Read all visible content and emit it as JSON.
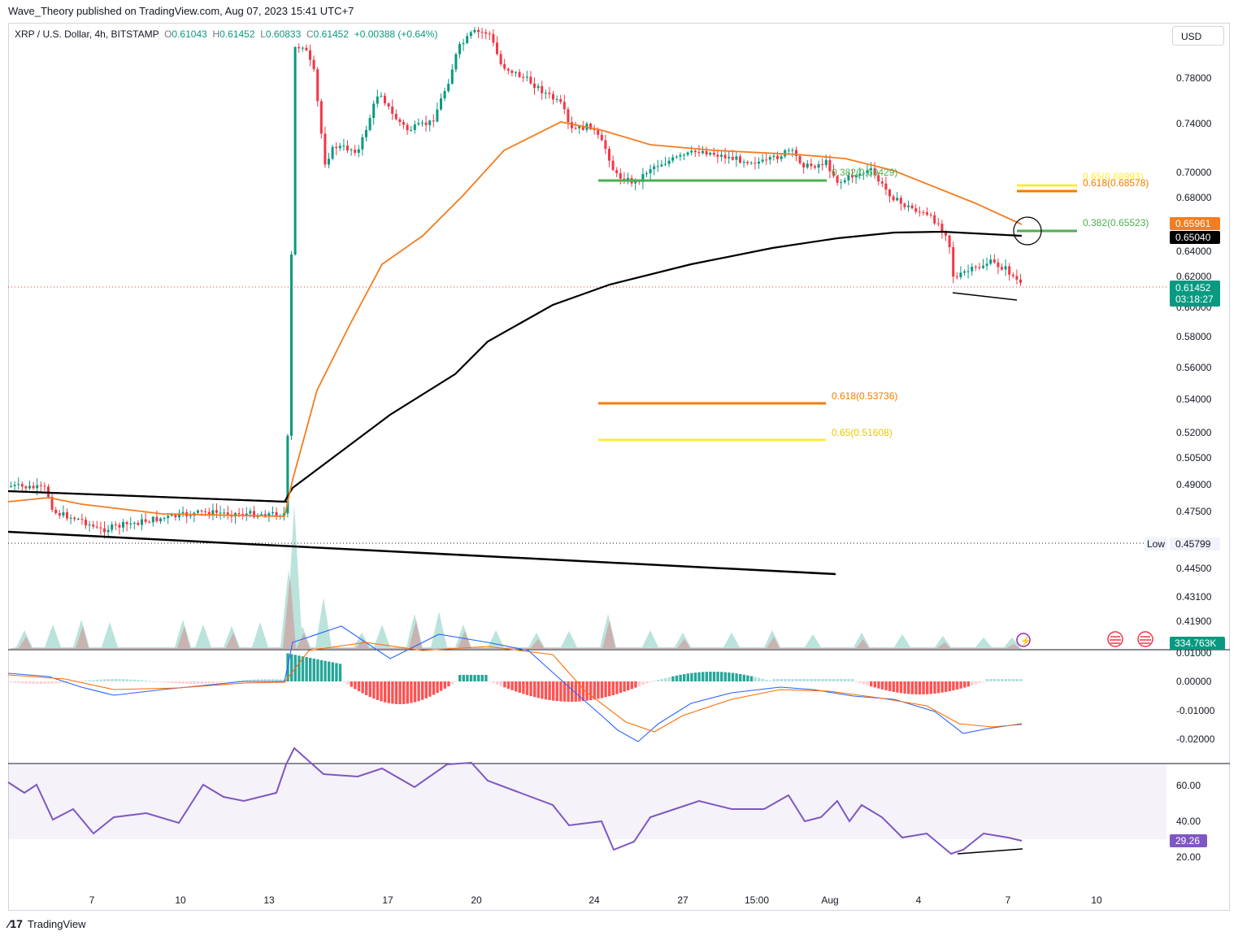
{
  "header": {
    "publisher_line": "Wave_Theory published on TradingView.com, Aug 07, 2023 15:41 UTC+7"
  },
  "legend": {
    "symbol": "XRP / U.S. Dollar, 4h, BITSTAMP",
    "o_label": "O",
    "o_value": "0.61043",
    "h_label": "H",
    "h_value": "0.61452",
    "l_label": "L",
    "l_value": "0.60833",
    "c_label": "C",
    "c_value": "0.61452",
    "change": "+0.00388 (+0.64%)"
  },
  "currency_button": "USD",
  "footer": {
    "brand": "TradingView"
  },
  "colors": {
    "up": "#089981",
    "down": "#f23645",
    "ema_fast": "#f57c1f",
    "ema_slow": "#000000",
    "fib_green": "#4caf50",
    "fib_orange": "#f57c00",
    "fib_yellow": "#ffeb3b",
    "macd_line": "#2962ff",
    "signal_line": "#ff6d00",
    "rsi": "#7e57c2"
  },
  "chart_data": [
    {
      "type": "candlestick",
      "panel": "price",
      "y_axis_ticks": [
        "0.78000",
        "0.74000",
        "0.70000",
        "0.68000",
        "0.64000",
        "0.62000",
        "0.60000",
        "0.58000",
        "0.56000",
        "0.54000",
        "0.52000",
        "0.50500",
        "0.49000",
        "0.47500",
        "0.44500",
        "0.43100",
        "0.41900"
      ],
      "x_axis_labels": [
        "7",
        "10",
        "13",
        "17",
        "20",
        "24",
        "27",
        "15:00",
        "Aug",
        "4",
        "7",
        "10"
      ],
      "price_labels": {
        "ema_fast": "0.65961",
        "ema_slow": "0.65040",
        "last": "0.61452",
        "countdown": "03:18:27",
        "low_tag": "Low",
        "low_value": "0.45799",
        "volume": "334.763K"
      },
      "fib_levels": [
        {
          "label": "0.65(0.68993)",
          "value": 0.68993,
          "color": "yellow"
        },
        {
          "label": "0.618(0.68578)",
          "value": 0.68578,
          "color": "orange"
        },
        {
          "label": "0.382(0.65523)",
          "value": 0.65523,
          "color": "green"
        },
        {
          "label": "0.382(0.69429)",
          "value": 0.69429,
          "color": "green"
        },
        {
          "label": "0.618(0.53736)",
          "value": 0.53736,
          "color": "orange"
        },
        {
          "label": "0.65(0.51608)",
          "value": 0.51608,
          "color": "yellow"
        }
      ],
      "key_points": [
        {
          "date": "Jul 5",
          "close": 0.478
        },
        {
          "date": "Jul 7",
          "close": 0.468
        },
        {
          "date": "Jul 13",
          "close": 0.475
        },
        {
          "date": "Jul 13",
          "close": 0.82
        },
        {
          "date": "Jul 14",
          "close": 0.79
        },
        {
          "date": "Jul 15",
          "close": 0.7
        },
        {
          "date": "Jul 17",
          "close": 0.76
        },
        {
          "date": "Jul 19",
          "close": 0.81
        },
        {
          "date": "Jul 20",
          "close": 0.815
        },
        {
          "date": "Jul 23",
          "close": 0.745
        },
        {
          "date": "Jul 24",
          "close": 0.7
        },
        {
          "date": "Jul 27",
          "close": 0.717
        },
        {
          "date": "Aug 1",
          "close": 0.72
        },
        {
          "date": "Aug 3",
          "close": 0.67
        },
        {
          "date": "Aug 5",
          "close": 0.63
        },
        {
          "date": "Aug 7",
          "close": 0.61452
        }
      ]
    },
    {
      "type": "histogram",
      "panel": "macd",
      "y_axis_ticks": [
        "0.01000",
        "0.00000",
        "-0.01000",
        "-0.02000"
      ]
    },
    {
      "type": "line",
      "panel": "rsi",
      "y_axis_ticks": [
        "60.00",
        "40.00",
        "20.00"
      ],
      "value_label": "29.26",
      "band": [
        30,
        70
      ]
    }
  ]
}
